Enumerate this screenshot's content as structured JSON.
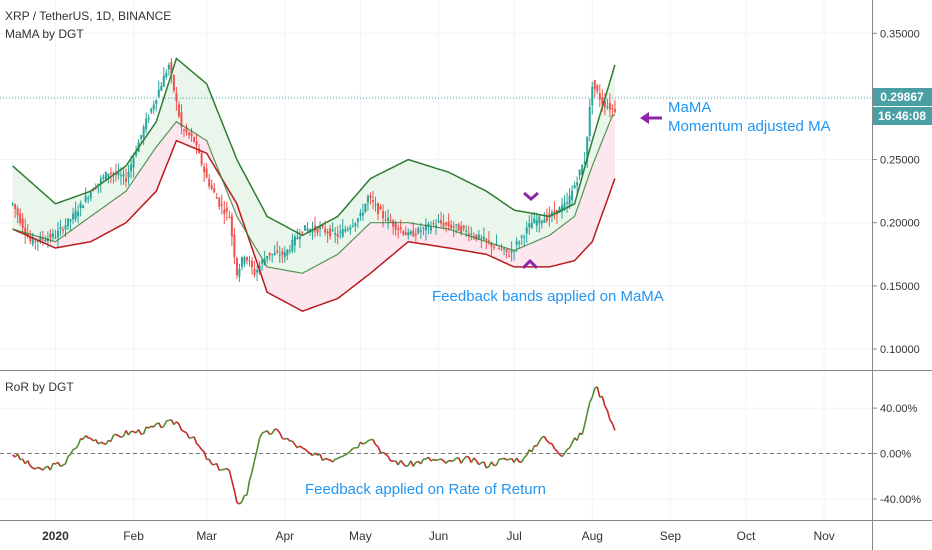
{
  "chart_data": [
    {
      "type": "candlestick",
      "title": "XRP / TetherUS, 1D, BINANCE",
      "indicator": "MaMA by DGT",
      "ylim": [
        0.085,
        0.37
      ],
      "y_ticks": [
        0.35,
        0.3,
        0.25,
        0.2,
        0.15,
        0.1
      ],
      "y_tick_labels": [
        "0.35000",
        "0.30000",
        "0.25000",
        "0.20000",
        "0.15000",
        "0.10000"
      ],
      "x_tick_labels": [
        "2020",
        "Feb",
        "Mar",
        "Apr",
        "May",
        "Jun",
        "Jul",
        "Aug",
        "Sep",
        "Oct",
        "Nov"
      ],
      "current_price": 0.29867,
      "current_price_label": "0.29867",
      "countdown_label": "16:46:08",
      "price_series": {
        "x": [
          "2019-12-15",
          "2019-12-22",
          "2020-01-01",
          "2020-01-08",
          "2020-01-15",
          "2020-01-22",
          "2020-01-29",
          "2020-02-05",
          "2020-02-10",
          "2020-02-15",
          "2020-02-20",
          "2020-02-25",
          "2020-03-01",
          "2020-03-06",
          "2020-03-10",
          "2020-03-13",
          "2020-03-16",
          "2020-03-20",
          "2020-03-25",
          "2020-04-01",
          "2020-04-08",
          "2020-04-15",
          "2020-04-22",
          "2020-05-01",
          "2020-05-04",
          "2020-05-10",
          "2020-05-20",
          "2020-06-01",
          "2020-06-10",
          "2020-06-20",
          "2020-06-29",
          "2020-07-08",
          "2020-07-15",
          "2020-07-22",
          "2020-07-26",
          "2020-07-29",
          "2020-08-01",
          "2020-08-05",
          "2020-08-09"
        ],
        "y": [
          0.215,
          0.185,
          0.19,
          0.205,
          0.225,
          0.24,
          0.235,
          0.275,
          0.3,
          0.325,
          0.275,
          0.265,
          0.235,
          0.215,
          0.205,
          0.16,
          0.175,
          0.16,
          0.175,
          0.175,
          0.195,
          0.195,
          0.19,
          0.205,
          0.22,
          0.205,
          0.19,
          0.2,
          0.195,
          0.185,
          0.175,
          0.2,
          0.205,
          0.215,
          0.235,
          0.25,
          0.31,
          0.295,
          0.29
        ]
      },
      "mama": {
        "x": [
          "2019-12-15",
          "2020-01-01",
          "2020-01-15",
          "2020-01-29",
          "2020-02-10",
          "2020-02-18",
          "2020-03-01",
          "2020-03-13",
          "2020-03-25",
          "2020-04-08",
          "2020-04-22",
          "2020-05-05",
          "2020-05-20",
          "2020-06-05",
          "2020-06-20",
          "2020-07-01",
          "2020-07-15",
          "2020-07-25",
          "2020-08-01",
          "2020-08-09"
        ],
        "y": [
          0.195,
          0.185,
          0.205,
          0.225,
          0.26,
          0.28,
          0.265,
          0.205,
          0.165,
          0.16,
          0.175,
          0.2,
          0.2,
          0.195,
          0.185,
          0.178,
          0.19,
          0.205,
          0.245,
          0.285
        ]
      },
      "upper_band": {
        "x": [
          "2019-12-15",
          "2020-01-01",
          "2020-01-15",
          "2020-01-29",
          "2020-02-10",
          "2020-02-18",
          "2020-03-01",
          "2020-03-13",
          "2020-03-25",
          "2020-04-08",
          "2020-04-22",
          "2020-05-05",
          "2020-05-20",
          "2020-06-05",
          "2020-06-20",
          "2020-07-01",
          "2020-07-15",
          "2020-07-25",
          "2020-08-01",
          "2020-08-10"
        ],
        "y": [
          0.245,
          0.215,
          0.225,
          0.245,
          0.28,
          0.33,
          0.31,
          0.25,
          0.205,
          0.19,
          0.205,
          0.235,
          0.25,
          0.24,
          0.225,
          0.21,
          0.205,
          0.215,
          0.265,
          0.325
        ]
      },
      "lower_band": {
        "x": [
          "2019-12-15",
          "2020-01-01",
          "2020-01-15",
          "2020-01-29",
          "2020-02-10",
          "2020-02-18",
          "2020-03-01",
          "2020-03-13",
          "2020-03-25",
          "2020-04-08",
          "2020-04-22",
          "2020-05-05",
          "2020-05-20",
          "2020-06-05",
          "2020-06-20",
          "2020-07-01",
          "2020-07-15",
          "2020-07-25",
          "2020-08-01",
          "2020-08-10"
        ],
        "y": [
          0.195,
          0.18,
          0.185,
          0.2,
          0.225,
          0.265,
          0.255,
          0.215,
          0.145,
          0.13,
          0.14,
          0.16,
          0.185,
          0.18,
          0.175,
          0.165,
          0.165,
          0.17,
          0.185,
          0.235
        ]
      },
      "annotations": [
        {
          "text": "MaMA",
          "color": "#2196f3"
        },
        {
          "text": "Momentum adjusted MA",
          "color": "#2196f3"
        },
        {
          "text": "Feedback bands applied on MaMA",
          "color": "#2196f3"
        }
      ]
    },
    {
      "type": "line",
      "indicator": "RoR by DGT",
      "ylim": [
        -55,
        70
      ],
      "y_ticks": [
        40,
        0,
        -40
      ],
      "y_tick_labels": [
        "40.00%",
        "0.00%",
        "-40.00%"
      ],
      "zero_line": true,
      "series": {
        "x": [
          "2019-12-15",
          "2019-12-25",
          "2020-01-05",
          "2020-01-12",
          "2020-01-20",
          "2020-01-29",
          "2020-02-05",
          "2020-02-12",
          "2020-02-18",
          "2020-02-25",
          "2020-03-03",
          "2020-03-10",
          "2020-03-13",
          "2020-03-17",
          "2020-03-22",
          "2020-03-28",
          "2020-04-05",
          "2020-04-12",
          "2020-04-20",
          "2020-04-28",
          "2020-05-05",
          "2020-05-12",
          "2020-05-20",
          "2020-05-28",
          "2020-06-05",
          "2020-06-12",
          "2020-06-20",
          "2020-06-28",
          "2020-07-05",
          "2020-07-12",
          "2020-07-20",
          "2020-07-28",
          "2020-08-02",
          "2020-08-06",
          "2020-08-10"
        ],
        "y": [
          0,
          -15,
          -8,
          15,
          10,
          18,
          20,
          25,
          28,
          12,
          -10,
          -15,
          -45,
          -35,
          15,
          20,
          8,
          -2,
          -5,
          5,
          15,
          -5,
          -10,
          -5,
          -8,
          -5,
          -10,
          -5,
          -5,
          15,
          0,
          18,
          60,
          45,
          20
        ]
      },
      "annotations": [
        {
          "text": "Feedback applied on Rate of Return",
          "color": "#2196f3"
        }
      ]
    }
  ],
  "colors": {
    "up": "#26a69a",
    "down": "#ef5350",
    "upper_band": "#2e7d32",
    "lower_band": "#b71c1c",
    "upper_fill": "#e8f5e9",
    "lower_fill": "#fce4ec",
    "price_line": "#4a9fa5",
    "marker": "#8e24aa",
    "ror_up": "#558b2f",
    "ror_down": "#c62828"
  }
}
